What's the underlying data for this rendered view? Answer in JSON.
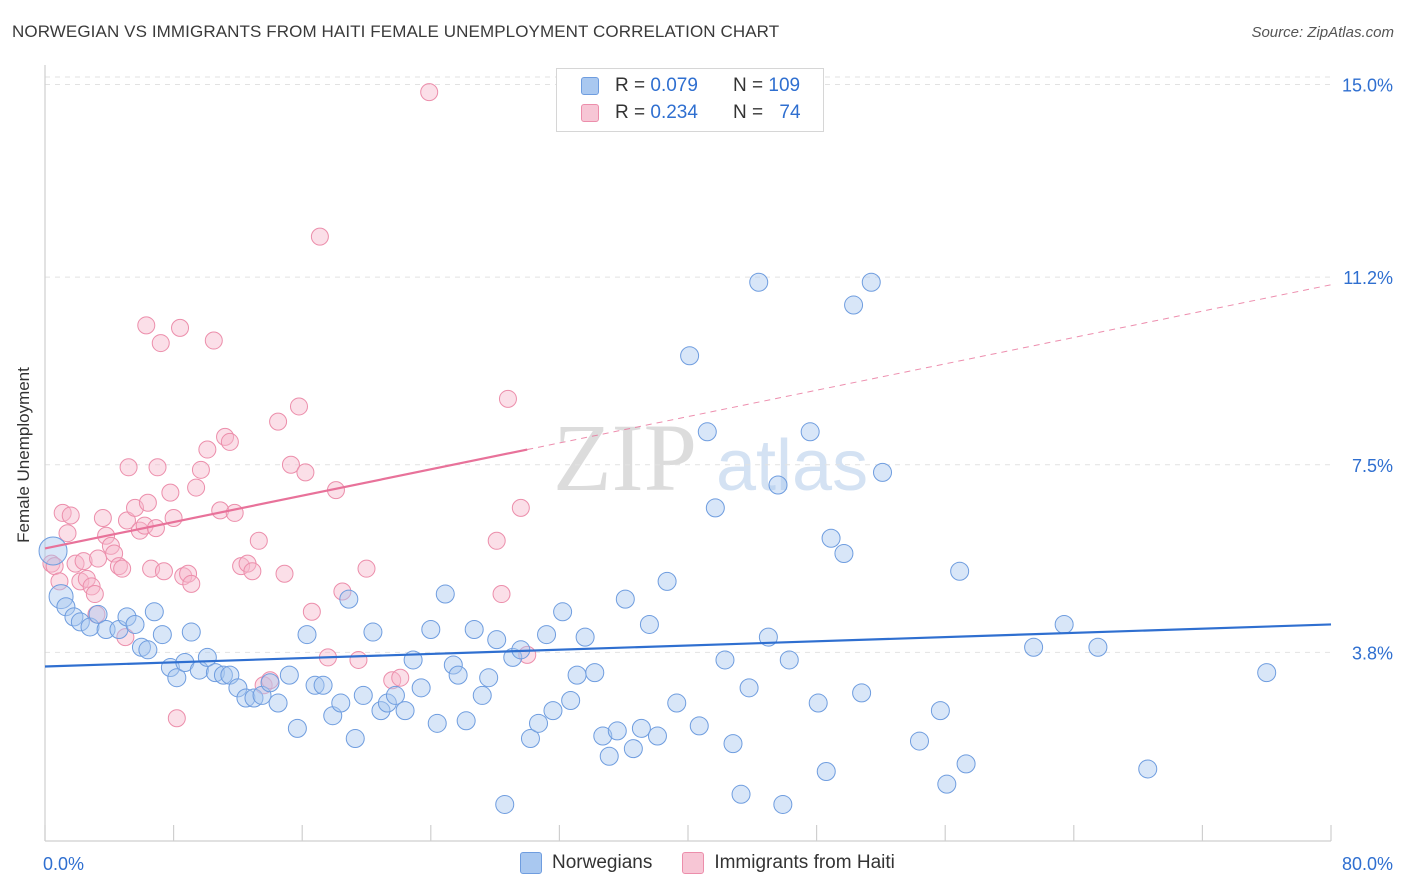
{
  "title": "NORWEGIAN VS IMMIGRANTS FROM HAITI FEMALE UNEMPLOYMENT CORRELATION CHART",
  "source": "Source: ZipAtlas.com",
  "watermark": {
    "zip": "ZIP",
    "atlas": "atlas"
  },
  "legend_top": [
    {
      "r_label": "R = ",
      "r_value": "0.079",
      "n_label": "N = ",
      "n_value": "109"
    },
    {
      "r_label": "R = ",
      "r_value": "0.234",
      "n_label": "N = ",
      "n_value": "74"
    }
  ],
  "legend_bottom": [
    "Norwegians",
    "Immigrants from Haiti"
  ],
  "colors": {
    "blue_fill": "#a9c8f0",
    "blue_stroke": "#6f9ddf",
    "blue_line": "#2f6fd0",
    "pink_fill": "#f7b9cc",
    "pink_stroke": "#ec8eab",
    "pink_line": "#e8729a",
    "tick_label": "#2f6fd0",
    "grid": "#e2e2e2"
  },
  "chart_data": {
    "type": "scatter",
    "title": "NORWEGIAN VS IMMIGRANTS FROM HAITI FEMALE UNEMPLOYMENT CORRELATION CHART",
    "xlabel": "",
    "ylabel": "Female Unemployment",
    "xlim": [
      0,
      80
    ],
    "ylim": [
      0,
      15.5
    ],
    "x_tick_labels": [
      "0.0%",
      "80.0%"
    ],
    "y_ticks": [
      3.8,
      7.5,
      11.2,
      15.0
    ],
    "y_tick_labels": [
      "3.8%",
      "7.5%",
      "11.2%",
      "15.0%"
    ],
    "grid": "horizontal dashed",
    "legend_placement": "top-center",
    "series": [
      {
        "name": "Norwegians",
        "color": "#6f9ddf",
        "trend": {
          "x": [
            0,
            80
          ],
          "y": [
            3.52,
            4.35
          ],
          "style": "solid"
        },
        "points": [
          [
            0.5,
            5.8
          ],
          [
            1.0,
            4.9
          ],
          [
            1.3,
            4.7
          ],
          [
            1.8,
            4.5
          ],
          [
            2.2,
            4.4
          ],
          [
            2.8,
            4.3
          ],
          [
            3.3,
            4.55
          ],
          [
            3.8,
            4.25
          ],
          [
            4.6,
            4.25
          ],
          [
            5.1,
            4.5
          ],
          [
            5.6,
            4.35
          ],
          [
            6.0,
            3.9
          ],
          [
            6.4,
            3.85
          ],
          [
            6.8,
            4.6
          ],
          [
            7.3,
            4.15
          ],
          [
            7.8,
            3.5
          ],
          [
            8.2,
            3.3
          ],
          [
            8.7,
            3.6
          ],
          [
            9.1,
            4.2
          ],
          [
            9.6,
            3.45
          ],
          [
            10.1,
            3.7
          ],
          [
            10.6,
            3.4
          ],
          [
            11.1,
            3.35
          ],
          [
            11.5,
            3.35
          ],
          [
            12.0,
            3.1
          ],
          [
            12.5,
            2.9
          ],
          [
            13.0,
            2.9
          ],
          [
            13.5,
            2.95
          ],
          [
            14.0,
            3.2
          ],
          [
            14.5,
            2.8
          ],
          [
            15.2,
            3.35
          ],
          [
            15.7,
            2.3
          ],
          [
            16.3,
            4.15
          ],
          [
            16.8,
            3.15
          ],
          [
            17.3,
            3.15
          ],
          [
            17.9,
            2.55
          ],
          [
            18.4,
            2.8
          ],
          [
            18.9,
            4.85
          ],
          [
            19.3,
            2.1
          ],
          [
            19.8,
            2.95
          ],
          [
            20.4,
            4.2
          ],
          [
            20.9,
            2.65
          ],
          [
            21.3,
            2.8
          ],
          [
            21.8,
            2.95
          ],
          [
            22.4,
            2.65
          ],
          [
            22.9,
            3.65
          ],
          [
            23.4,
            3.1
          ],
          [
            24.0,
            4.25
          ],
          [
            24.4,
            2.4
          ],
          [
            24.9,
            4.95
          ],
          [
            25.4,
            3.55
          ],
          [
            25.7,
            3.35
          ],
          [
            26.2,
            2.45
          ],
          [
            26.7,
            4.25
          ],
          [
            27.2,
            2.95
          ],
          [
            27.6,
            3.3
          ],
          [
            28.1,
            4.05
          ],
          [
            28.6,
            0.8
          ],
          [
            29.1,
            3.7
          ],
          [
            29.6,
            3.85
          ],
          [
            30.2,
            2.1
          ],
          [
            30.7,
            2.4
          ],
          [
            31.2,
            4.15
          ],
          [
            31.6,
            2.65
          ],
          [
            32.2,
            4.6
          ],
          [
            32.7,
            2.85
          ],
          [
            33.1,
            3.35
          ],
          [
            33.6,
            4.1
          ],
          [
            34.2,
            3.4
          ],
          [
            34.7,
            2.15
          ],
          [
            35.1,
            1.75
          ],
          [
            35.6,
            2.25
          ],
          [
            36.1,
            4.85
          ],
          [
            36.6,
            1.9
          ],
          [
            37.1,
            2.3
          ],
          [
            37.6,
            4.35
          ],
          [
            38.1,
            2.15
          ],
          [
            38.7,
            5.2
          ],
          [
            39.3,
            2.8
          ],
          [
            40.1,
            9.65
          ],
          [
            40.7,
            2.35
          ],
          [
            41.2,
            8.15
          ],
          [
            41.7,
            6.65
          ],
          [
            42.3,
            3.65
          ],
          [
            42.8,
            2.0
          ],
          [
            43.3,
            1.0
          ],
          [
            43.8,
            3.1
          ],
          [
            44.4,
            11.1
          ],
          [
            45.0,
            4.1
          ],
          [
            45.6,
            7.1
          ],
          [
            45.9,
            0.8
          ],
          [
            46.3,
            3.65
          ],
          [
            47.6,
            8.15
          ],
          [
            48.1,
            2.8
          ],
          [
            48.6,
            1.45
          ],
          [
            48.9,
            6.05
          ],
          [
            49.7,
            5.75
          ],
          [
            50.3,
            10.65
          ],
          [
            50.8,
            3.0
          ],
          [
            51.4,
            11.1
          ],
          [
            52.1,
            7.35
          ],
          [
            54.4,
            2.05
          ],
          [
            55.7,
            2.65
          ],
          [
            56.1,
            1.2
          ],
          [
            57.3,
            1.6
          ],
          [
            61.5,
            3.9
          ],
          [
            63.4,
            4.35
          ],
          [
            65.5,
            3.9
          ],
          [
            68.6,
            1.5
          ],
          [
            76.0,
            3.4
          ],
          [
            56.9,
            5.4
          ]
        ]
      },
      {
        "name": "Immigrants from Haiti",
        "color": "#ec8eab",
        "trend": {
          "x": [
            0,
            30
          ],
          "y": [
            5.85,
            7.8
          ],
          "style": "solid",
          "extended_to": [
            80,
            11.05
          ],
          "extended_style": "dashed"
        },
        "points": [
          [
            0.4,
            5.55
          ],
          [
            0.6,
            5.5
          ],
          [
            0.9,
            5.2
          ],
          [
            1.1,
            6.55
          ],
          [
            1.4,
            6.15
          ],
          [
            1.6,
            6.5
          ],
          [
            1.9,
            5.55
          ],
          [
            2.2,
            5.2
          ],
          [
            2.4,
            5.6
          ],
          [
            2.6,
            5.25
          ],
          [
            2.9,
            5.1
          ],
          [
            3.1,
            4.95
          ],
          [
            3.3,
            5.65
          ],
          [
            3.6,
            6.45
          ],
          [
            3.8,
            6.1
          ],
          [
            4.1,
            5.9
          ],
          [
            4.3,
            5.75
          ],
          [
            4.6,
            5.5
          ],
          [
            4.8,
            5.45
          ],
          [
            5.1,
            6.4
          ],
          [
            5.2,
            7.45
          ],
          [
            5.6,
            6.65
          ],
          [
            5.9,
            6.2
          ],
          [
            6.2,
            6.3
          ],
          [
            6.4,
            6.75
          ],
          [
            6.6,
            5.45
          ],
          [
            6.9,
            6.25
          ],
          [
            6.3,
            10.25
          ],
          [
            7.0,
            7.45
          ],
          [
            7.2,
            9.9
          ],
          [
            7.4,
            5.4
          ],
          [
            7.8,
            6.95
          ],
          [
            8.0,
            6.45
          ],
          [
            8.2,
            2.5
          ],
          [
            8.4,
            10.2
          ],
          [
            8.6,
            5.3
          ],
          [
            8.9,
            5.35
          ],
          [
            9.1,
            5.15
          ],
          [
            9.4,
            7.05
          ],
          [
            9.7,
            7.4
          ],
          [
            10.1,
            7.8
          ],
          [
            10.5,
            9.95
          ],
          [
            10.9,
            6.6
          ],
          [
            11.2,
            8.05
          ],
          [
            11.5,
            7.95
          ],
          [
            11.8,
            6.55
          ],
          [
            12.2,
            5.5
          ],
          [
            12.6,
            5.55
          ],
          [
            12.9,
            5.4
          ],
          [
            13.3,
            6.0
          ],
          [
            13.6,
            3.15
          ],
          [
            14.0,
            3.25
          ],
          [
            14.5,
            8.35
          ],
          [
            14.9,
            5.35
          ],
          [
            15.3,
            7.5
          ],
          [
            15.8,
            8.65
          ],
          [
            16.2,
            7.35
          ],
          [
            16.6,
            4.6
          ],
          [
            17.1,
            12.0
          ],
          [
            17.6,
            3.7
          ],
          [
            18.1,
            7.0
          ],
          [
            18.5,
            5.0
          ],
          [
            19.5,
            3.65
          ],
          [
            20.0,
            5.45
          ],
          [
            21.6,
            3.25
          ],
          [
            22.1,
            3.3
          ],
          [
            23.9,
            14.85
          ],
          [
            28.1,
            6.0
          ],
          [
            28.4,
            4.95
          ],
          [
            28.8,
            8.8
          ],
          [
            29.6,
            6.65
          ],
          [
            30.0,
            3.75
          ],
          [
            3.2,
            4.55
          ],
          [
            5.0,
            4.1
          ]
        ]
      }
    ]
  }
}
